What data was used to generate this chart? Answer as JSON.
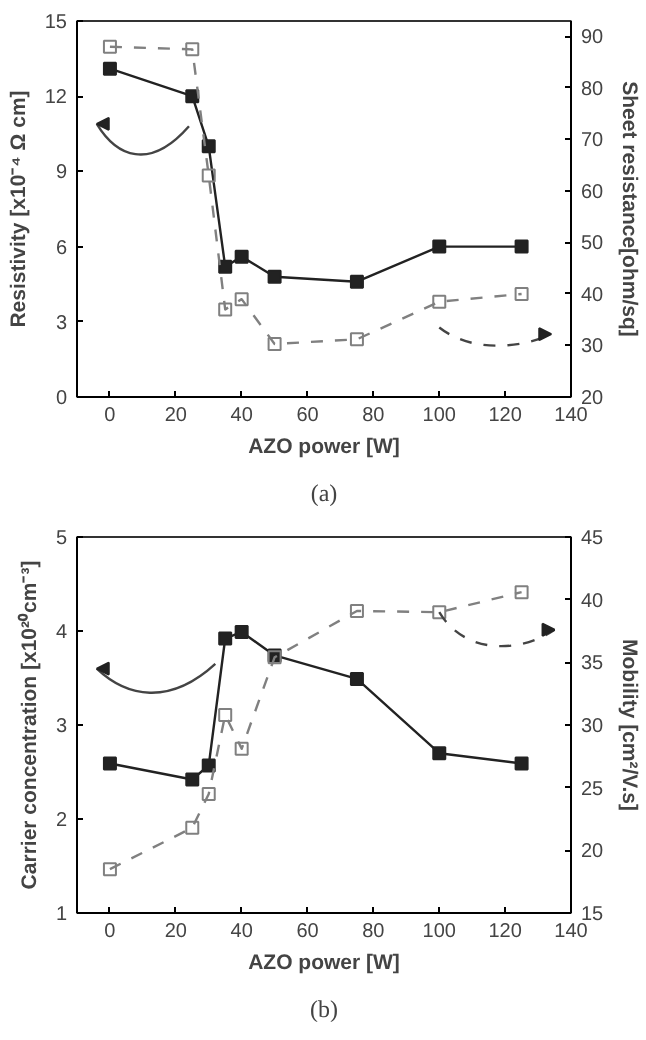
{
  "chart_data": [
    {
      "type": "line",
      "xlabel": "AZO power [W]",
      "ylabel": "Resistivity [x10⁻⁴ Ω cm]",
      "y2label": "Sheet resistance[ohm/sq]",
      "x": [
        0,
        25,
        30,
        35,
        40,
        50,
        75,
        100,
        125
      ],
      "xlim": [
        -10,
        140
      ],
      "xticks": [
        0,
        20,
        40,
        60,
        80,
        100,
        120,
        140
      ],
      "ylim": [
        0,
        15
      ],
      "yticks": [
        0,
        3,
        6,
        9,
        12,
        15
      ],
      "y2lim": [
        20,
        93
      ],
      "y2ticks": [
        20,
        30,
        40,
        50,
        60,
        70,
        80,
        90
      ],
      "marker": "square",
      "grid": false,
      "series": [
        {
          "color": "#222222",
          "line_style": "solid",
          "values": [
            13.1,
            12.0,
            10.0,
            5.2,
            5.6,
            4.8,
            4.6,
            6.0,
            6.0
          ]
        },
        {
          "color": "#808080",
          "line_style": "dashed",
          "axis": "y2",
          "values": [
            88,
            87.5,
            63,
            37,
            39,
            30.3,
            31.2,
            38.5,
            40
          ]
        }
      ],
      "annotations": [
        "(a)"
      ]
    },
    {
      "type": "line",
      "xlabel": "AZO power [W]",
      "ylabel": "Carrier concentration [x10²⁰cm⁻³]",
      "y2label": "Mobility [cm²/V.s]",
      "x": [
        0,
        25,
        30,
        35,
        40,
        50,
        75,
        100,
        125
      ],
      "xlim": [
        -10,
        140
      ],
      "xticks": [
        0,
        20,
        40,
        60,
        80,
        100,
        120,
        140
      ],
      "ylim": [
        1,
        5
      ],
      "yticks": [
        1,
        2,
        3,
        4,
        5
      ],
      "y2lim": [
        15,
        45
      ],
      "y2ticks": [
        15,
        20,
        25,
        30,
        35,
        40,
        45
      ],
      "marker": "square",
      "grid": false,
      "series": [
        {
          "color": "#222222",
          "line_style": "solid",
          "values": [
            2.59,
            2.42,
            2.57,
            3.92,
            3.99,
            3.74,
            3.49,
            2.7,
            2.59
          ]
        },
        {
          "color": "#808080",
          "line_style": "dashed",
          "axis": "y2",
          "values": [
            18.5,
            21.8,
            24.5,
            30.8,
            28.1,
            35.4,
            39.1,
            39.0,
            40.6
          ]
        }
      ],
      "annotations": [
        "(b)"
      ]
    }
  ]
}
